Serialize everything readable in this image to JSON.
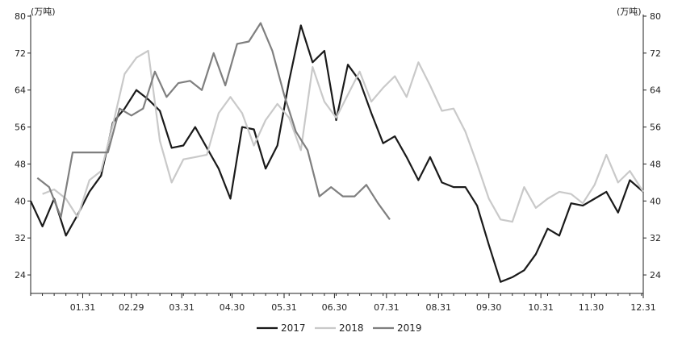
{
  "chart_data": {
    "type": "line",
    "unit_left": "(万吨)",
    "unit_right": "(万吨)",
    "ylim": [
      20,
      80
    ],
    "yticks": [
      24,
      32,
      40,
      48,
      56,
      64,
      72,
      80
    ],
    "xticks": [
      "01.31",
      "02.29",
      "03.31",
      "04.30",
      "05.31",
      "06.30",
      "07.31",
      "08.31",
      "09.30",
      "10.31",
      "11.30",
      "12.31"
    ],
    "x_start": "12.31",
    "x_end": "12.31",
    "series": [
      {
        "name": "2017",
        "color": "#1a1a1a",
        "values": [
          [
            "12.31",
            40
          ],
          [
            "01.07",
            34.5
          ],
          [
            "01.14",
            40.5
          ],
          [
            "01.21",
            32.5
          ],
          [
            "01.28",
            37
          ],
          [
            "02.04",
            42
          ],
          [
            "02.11",
            45.5
          ],
          [
            "02.18",
            57
          ],
          [
            "02.25",
            60
          ],
          [
            "03.04",
            64
          ],
          [
            "03.11",
            62
          ],
          [
            "03.18",
            59.5
          ],
          [
            "03.25",
            51.5
          ],
          [
            "04.01",
            52
          ],
          [
            "04.08",
            56
          ],
          [
            "04.15",
            51.5
          ],
          [
            "04.22",
            47
          ],
          [
            "04.29",
            40.5
          ],
          [
            "05.06",
            56
          ],
          [
            "05.13",
            55.5
          ],
          [
            "05.20",
            47
          ],
          [
            "05.27",
            52
          ],
          [
            "06.03",
            66
          ],
          [
            "06.10",
            78
          ],
          [
            "06.17",
            70
          ],
          [
            "06.24",
            72.5
          ],
          [
            "07.01",
            57.5
          ],
          [
            "07.08",
            69.5
          ],
          [
            "07.15",
            66
          ],
          [
            "07.22",
            59
          ],
          [
            "07.29",
            52.5
          ],
          [
            "08.05",
            54
          ],
          [
            "08.12",
            49.5
          ],
          [
            "08.19",
            44.5
          ],
          [
            "08.26",
            49.5
          ],
          [
            "09.02",
            44
          ],
          [
            "09.09",
            43
          ],
          [
            "09.16",
            43
          ],
          [
            "09.23",
            39
          ],
          [
            "09.30",
            30.5
          ],
          [
            "10.07",
            22.5
          ],
          [
            "10.14",
            23.5
          ],
          [
            "10.21",
            25
          ],
          [
            "10.28",
            28.5
          ],
          [
            "11.04",
            34
          ],
          [
            "11.11",
            32.5
          ],
          [
            "11.18",
            39.5
          ],
          [
            "11.25",
            39
          ],
          [
            "12.02",
            40.5
          ],
          [
            "12.09",
            42
          ],
          [
            "12.16",
            37.5
          ],
          [
            "12.23",
            44.5
          ],
          [
            "12.31",
            42
          ]
        ]
      },
      {
        "name": "2018",
        "color": "#c9c9c9",
        "values": [
          [
            "01.07",
            41.5
          ],
          [
            "01.14",
            42.5
          ],
          [
            "01.21",
            40.5
          ],
          [
            "01.28",
            36.5
          ],
          [
            "02.04",
            44.5
          ],
          [
            "02.11",
            46.5
          ],
          [
            "02.18",
            56.5
          ],
          [
            "02.25",
            67.5
          ],
          [
            "03.04",
            71
          ],
          [
            "03.11",
            72.5
          ],
          [
            "03.18",
            53
          ],
          [
            "03.25",
            44
          ],
          [
            "04.01",
            49
          ],
          [
            "04.08",
            49.5
          ],
          [
            "04.15",
            50
          ],
          [
            "04.22",
            59
          ],
          [
            "04.29",
            62.5
          ],
          [
            "05.06",
            59
          ],
          [
            "05.13",
            52
          ],
          [
            "05.20",
            57.5
          ],
          [
            "05.27",
            61
          ],
          [
            "06.03",
            58
          ],
          [
            "06.10",
            51
          ],
          [
            "06.17",
            69
          ],
          [
            "06.24",
            61.5
          ],
          [
            "07.01",
            58
          ],
          [
            "07.08",
            63
          ],
          [
            "07.15",
            68
          ],
          [
            "07.22",
            61.5
          ],
          [
            "07.29",
            64.5
          ],
          [
            "08.05",
            67
          ],
          [
            "08.12",
            62.5
          ],
          [
            "08.19",
            70
          ],
          [
            "08.26",
            65
          ],
          [
            "09.02",
            59.5
          ],
          [
            "09.09",
            60
          ],
          [
            "09.16",
            55
          ],
          [
            "09.23",
            48
          ],
          [
            "09.30",
            40.5
          ],
          [
            "10.07",
            36
          ],
          [
            "10.14",
            35.5
          ],
          [
            "10.21",
            43
          ],
          [
            "10.28",
            38.5
          ],
          [
            "11.04",
            40.5
          ],
          [
            "11.11",
            42
          ],
          [
            "11.18",
            41.5
          ],
          [
            "11.25",
            39.5
          ],
          [
            "12.02",
            43.5
          ],
          [
            "12.09",
            50
          ],
          [
            "12.16",
            44
          ],
          [
            "12.23",
            46.5
          ],
          [
            "12.31",
            42
          ]
        ]
      },
      {
        "name": "2019",
        "color": "#7f7f7f",
        "values": [
          [
            "01.04",
            45
          ],
          [
            "01.11",
            43
          ],
          [
            "01.18",
            36.5
          ],
          [
            "01.25",
            50.5
          ],
          [
            "02.01",
            50.5
          ],
          [
            "02.08",
            50.5
          ],
          [
            "02.15",
            50.5
          ],
          [
            "02.22",
            60
          ],
          [
            "03.01",
            58.5
          ],
          [
            "03.08",
            60
          ],
          [
            "03.15",
            68
          ],
          [
            "03.22",
            62.5
          ],
          [
            "03.29",
            65.5
          ],
          [
            "04.05",
            66
          ],
          [
            "04.12",
            64
          ],
          [
            "04.19",
            72
          ],
          [
            "04.26",
            65
          ],
          [
            "05.03",
            74
          ],
          [
            "05.10",
            74.5
          ],
          [
            "05.17",
            78.5
          ],
          [
            "05.24",
            72.5
          ],
          [
            "05.31",
            63
          ],
          [
            "06.07",
            55
          ],
          [
            "06.14",
            51
          ],
          [
            "06.21",
            41
          ],
          [
            "06.28",
            43
          ],
          [
            "07.05",
            41
          ],
          [
            "07.12",
            41
          ],
          [
            "07.19",
            43.5
          ],
          [
            "07.26",
            39.5
          ],
          [
            "08.02",
            36
          ]
        ]
      }
    ],
    "legend_position": "bottom"
  }
}
